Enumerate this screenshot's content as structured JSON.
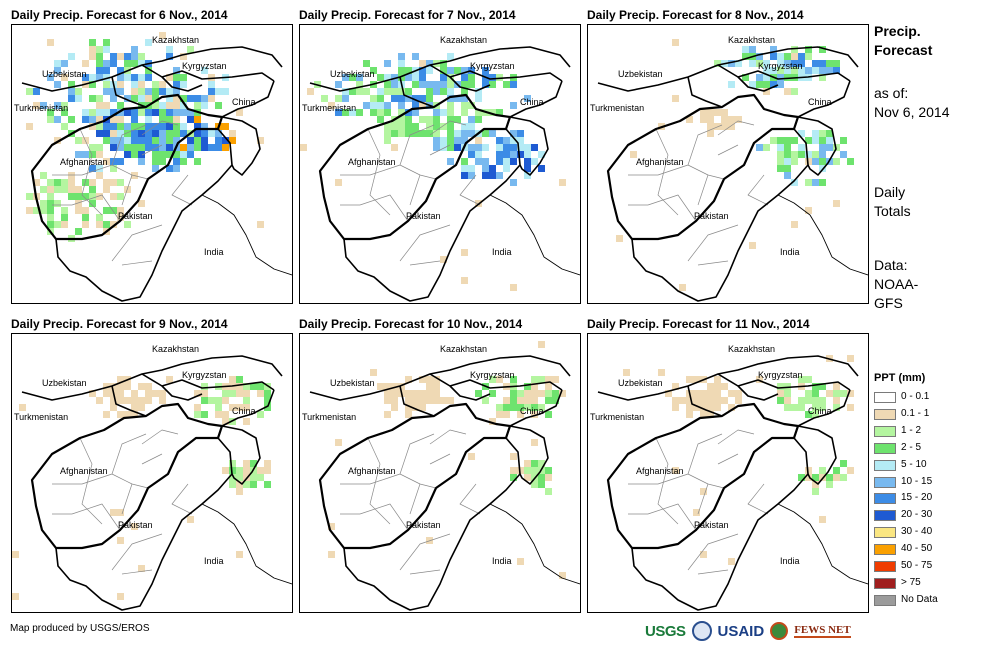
{
  "panels": [
    {
      "title": "Daily Precip. Forecast for 6 Nov., 2014",
      "rain_level": "heavy"
    },
    {
      "title": "Daily Precip. Forecast for 7 Nov., 2014",
      "rain_level": "heavy-east"
    },
    {
      "title": "Daily Precip. Forecast for 8 Nov., 2014",
      "rain_level": "moderate-northeast"
    },
    {
      "title": "Daily Precip. Forecast for 9 Nov., 2014",
      "rain_level": "light"
    },
    {
      "title": "Daily Precip. Forecast for 10 Nov., 2014",
      "rain_level": "light"
    },
    {
      "title": "Daily Precip. Forecast for 11 Nov., 2014",
      "rain_level": "light"
    }
  ],
  "map_labels": {
    "kazakhstan": "Kazakhstan",
    "kyrgyzstan": "Kyrgyzstan",
    "uzbekistan": "Uzbekistan",
    "turkmenistan": "Turkmenistan",
    "china": "China",
    "afghanistan": "Afghanistan",
    "pakistan": "Pakistan",
    "india": "India"
  },
  "side": {
    "title_line1": "Precip.",
    "title_line2": "Forecast",
    "asof_line1": "as of:",
    "asof_line2": "Nov 6, 2014",
    "totals_line1": "Daily",
    "totals_line2": "Totals",
    "data_line1": "Data:",
    "data_line2": "NOAA-",
    "data_line3": "GFS"
  },
  "legend": {
    "title": "PPT (mm)",
    "items": [
      {
        "label": "0 - 0.1",
        "color": "#ffffff"
      },
      {
        "label": "0.1 - 1",
        "color": "#efd9b4"
      },
      {
        "label": "1 - 2",
        "color": "#b4f5a0"
      },
      {
        "label": "2 - 5",
        "color": "#6ee36e"
      },
      {
        "label": "5 - 10",
        "color": "#b4ebf5"
      },
      {
        "label": "10 - 15",
        "color": "#78b9ef"
      },
      {
        "label": "15 - 20",
        "color": "#3c8ce6"
      },
      {
        "label": "20 - 30",
        "color": "#1e5ad2"
      },
      {
        "label": "30 - 40",
        "color": "#fae682"
      },
      {
        "label": "40 - 50",
        "color": "#faa000"
      },
      {
        "label": "50 - 75",
        "color": "#f03c00"
      },
      {
        "label": "> 75",
        "color": "#a01e1e"
      },
      {
        "label": "No Data",
        "color": "#9b9b9b"
      }
    ]
  },
  "credit": "Map produced by USGS/EROS",
  "logos": {
    "usgs": "USGS",
    "usaid": "USAID",
    "fews": "FEWS NET"
  }
}
